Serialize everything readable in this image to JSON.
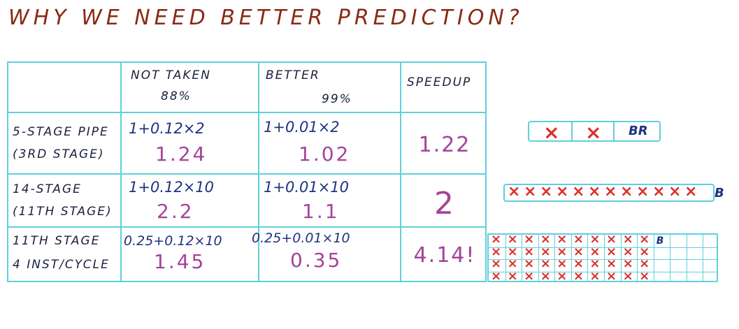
{
  "title": "WHY WE NEED BETTER PREDICTION?",
  "table": {
    "headers": {
      "not_taken": "NOT TAKEN",
      "not_taken_pct": "88%",
      "better": "BETTER",
      "better_pct": "99%",
      "speedup": "SPEEDUP"
    },
    "rows": [
      {
        "label1": "5-STAGE PIPE",
        "label2": "(3RD STAGE)",
        "nt_formula": "1+0.12×2",
        "nt_result": "1.24",
        "b_formula": "1+0.01×2",
        "b_result": "1.02",
        "speedup": "1.22"
      },
      {
        "label1": "14-STAGE",
        "label2": "(11TH STAGE)",
        "nt_formula": "1+0.12×10",
        "nt_result": "2.2",
        "b_formula": "1+0.01×10",
        "b_result": "1.1",
        "speedup": "2"
      },
      {
        "label1": "11TH STAGE",
        "label2": "4 INST/CYCLE",
        "nt_formula": "0.25+0.12×10",
        "nt_result": "1.45",
        "b_formula": "0.25+0.01×10",
        "b_result": "0.35",
        "speedup": "4.14!"
      }
    ]
  },
  "pipelines": {
    "short_branch": "BR",
    "long_branch": "B",
    "wide_branch": "B",
    "x_mark": "×"
  },
  "colors": {
    "title": "#8a2a14",
    "grid": "#5fd0dd",
    "formula": "#1f3380",
    "result": "#a3449a",
    "x_mark": "#d8322a"
  }
}
